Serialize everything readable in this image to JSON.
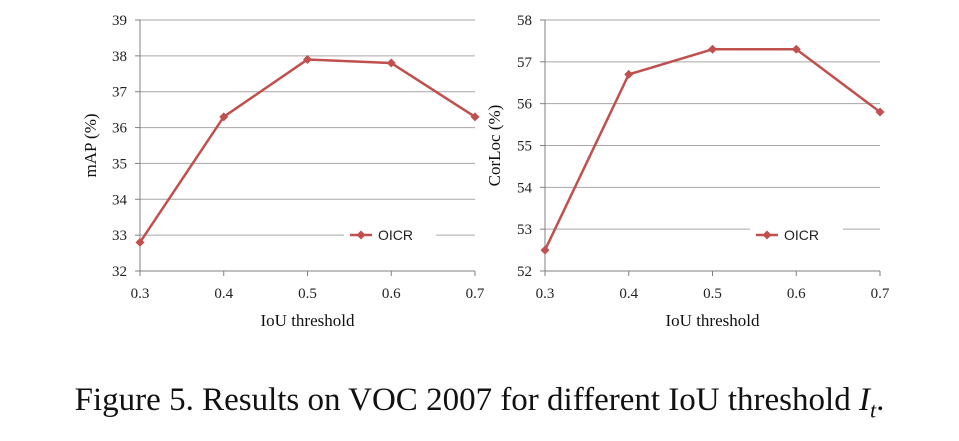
{
  "chart_data": [
    {
      "type": "line",
      "x": [
        0.3,
        0.4,
        0.5,
        0.6,
        0.7
      ],
      "x_tick_labels": [
        "0.3",
        "0.4",
        "0.5",
        "0.6",
        "0.7"
      ],
      "series": [
        {
          "name": "OICR",
          "values": [
            32.8,
            36.3,
            37.9,
            37.8,
            36.3
          ],
          "color": "#c0504d"
        }
      ],
      "xlabel": "IoU threshold",
      "ylabel": "mAP (%)",
      "ylim": [
        32,
        39
      ],
      "y_ticks": [
        32,
        33,
        34,
        35,
        36,
        37,
        38,
        39
      ],
      "y_tick_labels": [
        "32",
        "33",
        "34",
        "35",
        "36",
        "37",
        "38",
        "39"
      ],
      "grid": true,
      "legend": "bottom-right"
    },
    {
      "type": "line",
      "x": [
        0.3,
        0.4,
        0.5,
        0.6,
        0.7
      ],
      "x_tick_labels": [
        "0.3",
        "0.4",
        "0.5",
        "0.6",
        "0.7"
      ],
      "series": [
        {
          "name": "OICR",
          "values": [
            52.5,
            56.7,
            57.3,
            57.3,
            55.8
          ],
          "color": "#c0504d"
        }
      ],
      "xlabel": "IoU threshold",
      "ylabel": "CorLoc (%)",
      "ylim": [
        52,
        58
      ],
      "y_ticks": [
        52,
        53,
        54,
        55,
        56,
        57,
        58
      ],
      "y_tick_labels": [
        "52",
        "53",
        "54",
        "55",
        "56",
        "57",
        "58"
      ],
      "grid": true,
      "legend": "bottom-right"
    }
  ],
  "caption": {
    "text": "Figure 5. Results on VOC 2007 for different IoU threshold ",
    "math_symbol": "I",
    "math_subscript": "t",
    "end": "."
  }
}
